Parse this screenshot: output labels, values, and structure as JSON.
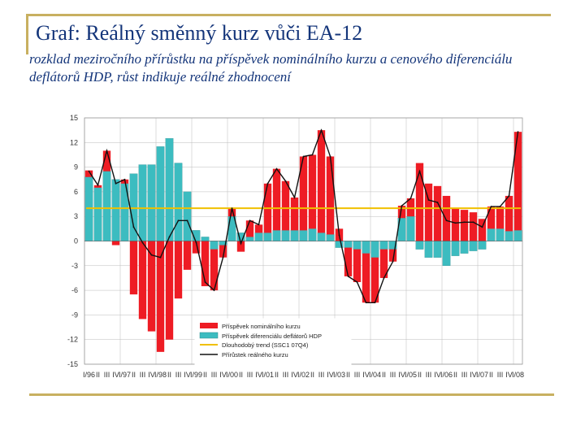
{
  "title": "Graf: Reálný směnný kurz vůči EA-12",
  "subtitle": "rozklad meziročního přírůstku na příspěvek nominálního kurzu a cenového diferenciálu deflátorů HDP, růst indikuje reálné zhodnocení",
  "chart_data": {
    "type": "bar",
    "colors": {
      "nominal": "#ee1c24",
      "deflator": "#3cbcc0",
      "trend": "#f0c000",
      "real": "#111111",
      "grid": "#bbbbbb"
    },
    "y_ticks": [
      "15",
      "12",
      "9",
      "6",
      "3",
      "0",
      "-3",
      "-6",
      "-9",
      "-12",
      "-15"
    ],
    "ylim": [
      -15,
      15
    ],
    "x_labels": [
      "I/96",
      "II",
      "III",
      "IV",
      "I/97",
      "II",
      "III",
      "IV",
      "I/98",
      "II",
      "III",
      "IV",
      "I/99",
      "II",
      "III",
      "IV",
      "I/00",
      "II",
      "III",
      "IV",
      "I/01",
      "II",
      "III",
      "IV",
      "I/02",
      "II",
      "III",
      "IV",
      "I/03",
      "II",
      "III",
      "IV",
      "I/04",
      "II",
      "III",
      "IV",
      "I/05",
      "II",
      "III",
      "IV",
      "I/06",
      "II",
      "III",
      "IV",
      "I/07",
      "II",
      "III",
      "IV",
      "I/08"
    ],
    "legend": [
      "Příspěvek nominálního kurzu",
      "Příspěvek diferenciálu deflátorů HDP",
      "Dlouhodobý trend (SSC1 07Q4)",
      "Přírůstek reálného kurzu"
    ],
    "trend_value": 4,
    "series": [
      {
        "name": "Příspěvek diferenciálu deflátorů HDP",
        "values": [
          7.8,
          6.5,
          8.5,
          7.5,
          7,
          8.2,
          9.3,
          9.3,
          11.5,
          12.5,
          9.5,
          6,
          1.3,
          0.5,
          -1,
          -0.5,
          3,
          1,
          0.5,
          1,
          1,
          1.3,
          1.3,
          1.3,
          1.3,
          1.5,
          1,
          0.8,
          -0.8,
          -0.8,
          -1,
          -1.5,
          -2,
          -1,
          -1,
          2.8,
          3,
          -1,
          -2,
          -2,
          -3,
          -1.8,
          -1.5,
          -1.2,
          -1,
          1.5,
          1.5,
          1.2,
          1.3
        ]
      },
      {
        "name": "Příspěvek nominálního kurzu",
        "values": [
          0.8,
          0.3,
          2.5,
          -0.5,
          0.5,
          -6.5,
          -9.5,
          -11,
          -13.5,
          -12,
          -7,
          -3.5,
          -1.5,
          -5.5,
          -5,
          -1.5,
          1,
          -1.3,
          2,
          1,
          6,
          7.5,
          6,
          4,
          9,
          9,
          12.5,
          9.5,
          1.5,
          -3.5,
          -4,
          -6,
          -5.5,
          -3.5,
          -1.5,
          1.5,
          2.2,
          9.5,
          7,
          6.7,
          5.5,
          4,
          3.8,
          3.5,
          2.7,
          2.7,
          2.7,
          4.3,
          12
        ]
      },
      {
        "name": "Přírůstek reálného kurzu",
        "values": [
          8.5,
          6.8,
          11,
          7,
          7.5,
          1.7,
          -0.2,
          -1.7,
          -2,
          0.5,
          2.5,
          2.5,
          -0.2,
          -5,
          -6,
          -2,
          4,
          -0.3,
          2.5,
          2,
          7,
          8.8,
          7.3,
          5.3,
          10.3,
          10.5,
          13.5,
          10.3,
          0.7,
          -4.3,
          -5,
          -7.5,
          -7.5,
          -4.5,
          -2.5,
          4.3,
          5.2,
          8.5,
          5,
          4.7,
          2.5,
          2.2,
          2.3,
          2.3,
          1.7,
          4.2,
          4.2,
          5.5,
          13.3
        ]
      }
    ]
  }
}
